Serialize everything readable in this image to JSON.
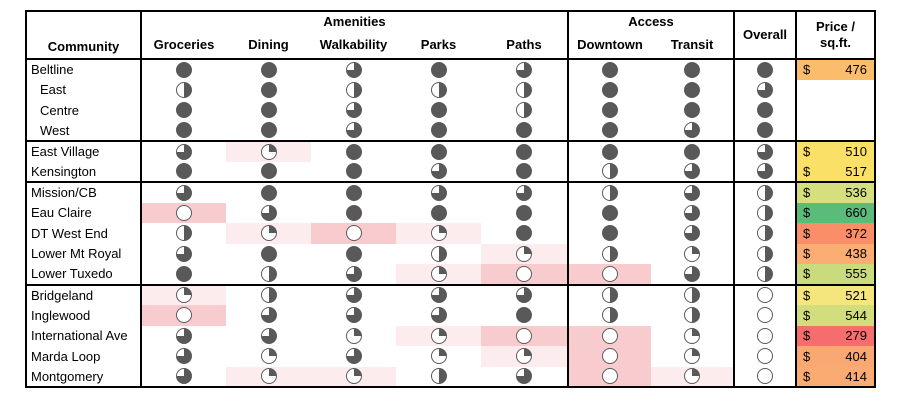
{
  "header": {
    "community": "Community",
    "amenities_group": "Amenities",
    "access_group": "Access",
    "overall": "Overall",
    "price_line1": "Price /",
    "price_line2": "sq.ft.",
    "amenity_columns": [
      "Groceries",
      "Dining",
      "Walkability",
      "Parks",
      "Paths"
    ],
    "access_columns": [
      "Downtown",
      "Transit"
    ]
  },
  "currency_symbol": "$",
  "colors": {
    "ball_fill": "#595959",
    "ball_empty": "#ffffff",
    "highlight_light": "#FDECEE",
    "highlight_strong": "#F8CBCF",
    "table_border": "#000000"
  },
  "score_legend": "Harvey ball fill in quarters: 0=empty, 1=quarter, 2=half, 3=three-quarters, 4=full",
  "chart_data": {
    "type": "table",
    "title": "Community amenity / access ratings with price per sq.ft.",
    "columns": [
      "Community",
      "Groceries",
      "Dining",
      "Walkability",
      "Parks",
      "Paths",
      "Downtown",
      "Transit",
      "Overall",
      "Price / sq.ft."
    ],
    "column_groups": [
      {
        "label": "Amenities",
        "columns": [
          "Groceries",
          "Dining",
          "Walkability",
          "Parks",
          "Paths"
        ]
      },
      {
        "label": "Access",
        "columns": [
          "Downtown",
          "Transit"
        ]
      }
    ],
    "rows": [
      {
        "name": "Beltline",
        "indent": false,
        "group_start": true,
        "scores": [
          4,
          4,
          3,
          4,
          3,
          4,
          4,
          4
        ],
        "hl": [
          0,
          0,
          0,
          0,
          0,
          0,
          0,
          0
        ],
        "price": "476",
        "price_bg": "#FBBD6C"
      },
      {
        "name": "East",
        "indent": true,
        "group_start": false,
        "scores": [
          2,
          4,
          2,
          2,
          2,
          4,
          4,
          3
        ],
        "hl": [
          0,
          0,
          0,
          0,
          0,
          0,
          0,
          0
        ],
        "price": null,
        "price_bg": null
      },
      {
        "name": "Centre",
        "indent": true,
        "group_start": false,
        "scores": [
          4,
          4,
          3,
          4,
          2,
          4,
          4,
          4
        ],
        "hl": [
          0,
          0,
          0,
          0,
          0,
          0,
          0,
          0
        ],
        "price": null,
        "price_bg": null
      },
      {
        "name": "West",
        "indent": true,
        "group_start": false,
        "scores": [
          4,
          4,
          3,
          4,
          4,
          4,
          3,
          4
        ],
        "hl": [
          0,
          0,
          0,
          0,
          0,
          0,
          0,
          0
        ],
        "price": null,
        "price_bg": null
      },
      {
        "name": "East Village",
        "indent": false,
        "group_start": true,
        "scores": [
          3,
          1,
          4,
          4,
          4,
          4,
          4,
          3
        ],
        "hl": [
          0,
          1,
          0,
          0,
          0,
          0,
          0,
          0
        ],
        "price": "510",
        "price_bg": "#FBE067"
      },
      {
        "name": "Kensington",
        "indent": false,
        "group_start": false,
        "scores": [
          4,
          4,
          4,
          3,
          4,
          2,
          3,
          3
        ],
        "hl": [
          0,
          0,
          0,
          0,
          0,
          0,
          0,
          0
        ],
        "price": "517",
        "price_bg": "#FBE067"
      },
      {
        "name": "Mission/CB",
        "indent": false,
        "group_start": true,
        "scores": [
          3,
          4,
          4,
          3,
          3,
          2,
          3,
          2
        ],
        "hl": [
          0,
          0,
          0,
          0,
          0,
          0,
          0,
          0
        ],
        "price": "536",
        "price_bg": "#D6DF7D"
      },
      {
        "name": "Eau Claire",
        "indent": false,
        "group_start": false,
        "scores": [
          0,
          3,
          4,
          4,
          4,
          4,
          3,
          2
        ],
        "hl": [
          2,
          0,
          0,
          0,
          0,
          0,
          0,
          0
        ],
        "price": "660",
        "price_bg": "#5BBB7B"
      },
      {
        "name": "DT West End",
        "indent": false,
        "group_start": false,
        "scores": [
          2,
          1,
          0,
          1,
          4,
          4,
          3,
          2
        ],
        "hl": [
          0,
          1,
          2,
          1,
          0,
          0,
          0,
          0
        ],
        "price": "372",
        "price_bg": "#F98E69"
      },
      {
        "name": "Lower Mt Royal",
        "indent": false,
        "group_start": false,
        "scores": [
          3,
          4,
          4,
          2,
          1,
          2,
          1,
          2
        ],
        "hl": [
          0,
          0,
          0,
          0,
          1,
          0,
          0,
          0
        ],
        "price": "438",
        "price_bg": "#FBAD73"
      },
      {
        "name": "Lower Tuxedo",
        "indent": false,
        "group_start": false,
        "scores": [
          4,
          2,
          3,
          1,
          0,
          0,
          3,
          2
        ],
        "hl": [
          0,
          0,
          0,
          1,
          2,
          2,
          0,
          0
        ],
        "price": "555",
        "price_bg": "#CADB7E"
      },
      {
        "name": "Bridgeland",
        "indent": false,
        "group_start": true,
        "scores": [
          1,
          2,
          3,
          3,
          3,
          2,
          2,
          0
        ],
        "hl": [
          1,
          0,
          0,
          0,
          0,
          0,
          0,
          0
        ],
        "price": "521",
        "price_bg": "#F4E67D"
      },
      {
        "name": "Inglewood",
        "indent": false,
        "group_start": false,
        "scores": [
          0,
          3,
          3,
          3,
          4,
          2,
          2,
          0
        ],
        "hl": [
          2,
          0,
          0,
          0,
          0,
          0,
          0,
          0
        ],
        "price": "544",
        "price_bg": "#D2DE7E"
      },
      {
        "name": "International Ave",
        "indent": false,
        "group_start": false,
        "scores": [
          3,
          3,
          1,
          1,
          0,
          0,
          1,
          0
        ],
        "hl": [
          0,
          0,
          0,
          1,
          2,
          2,
          0,
          0
        ],
        "price": "279",
        "price_bg": "#F66D6E"
      },
      {
        "name": "Marda Loop",
        "indent": false,
        "group_start": false,
        "scores": [
          3,
          1,
          3,
          1,
          1,
          0,
          1,
          0
        ],
        "hl": [
          0,
          0,
          0,
          0,
          1,
          2,
          0,
          0
        ],
        "price": "404",
        "price_bg": "#FAA871"
      },
      {
        "name": "Montgomery",
        "indent": false,
        "group_start": false,
        "scores": [
          3,
          1,
          1,
          2,
          3,
          0,
          1,
          0
        ],
        "hl": [
          0,
          1,
          1,
          0,
          0,
          2,
          1,
          0
        ],
        "price": "414",
        "price_bg": "#FAAB72"
      }
    ]
  }
}
